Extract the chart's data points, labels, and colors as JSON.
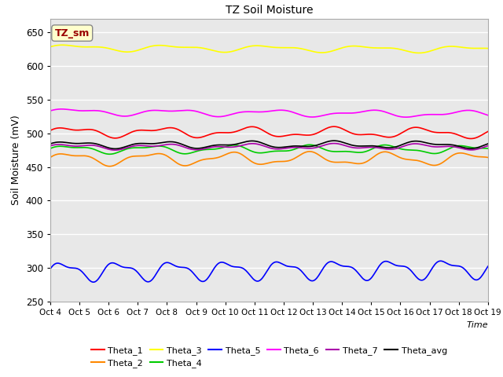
{
  "title": "TZ Soil Moisture",
  "xlabel": "Time",
  "ylabel": "Soil Moisture (mV)",
  "ylim": [
    250,
    670
  ],
  "yticks": [
    250,
    300,
    350,
    400,
    450,
    500,
    550,
    600,
    650
  ],
  "x_start": 0,
  "x_end": 15,
  "n_points": 500,
  "background_color": "#e8e8e8",
  "label_box_text": "TZ_sm",
  "label_box_facecolor": "#ffffcc",
  "label_box_edgecolor": "#aaaaaa",
  "label_box_textcolor": "#990000",
  "series": [
    {
      "name": "Theta_1",
      "color": "#ff0000",
      "base": 502,
      "amp": 6,
      "freq": 5.0,
      "freq2": 11.0,
      "amp2": 3,
      "trend": -0.1
    },
    {
      "name": "Theta_2",
      "color": "#ff8800",
      "base": 462,
      "amp": 8,
      "freq": 5.5,
      "freq2": 12.0,
      "amp2": 3,
      "trend": 0.0
    },
    {
      "name": "Theta_3",
      "color": "#ffff00",
      "base": 627,
      "amp": 4,
      "freq": 4.5,
      "freq2": 9.0,
      "amp2": 2,
      "trend": -0.15
    },
    {
      "name": "Theta_4",
      "color": "#00cc00",
      "base": 476,
      "amp": 5,
      "freq": 5.5,
      "freq2": 12.0,
      "amp2": 2,
      "trend": 0.0
    },
    {
      "name": "Theta_5",
      "color": "#0000ff",
      "base": 295,
      "amp": 12,
      "freq": 8.0,
      "freq2": 16.0,
      "amp2": 5,
      "trend": 0.25
    },
    {
      "name": "Theta_6",
      "color": "#ff00ff",
      "base": 532,
      "amp": 4,
      "freq": 4.5,
      "freq2": 9.5,
      "amp2": 2,
      "trend": -0.25
    },
    {
      "name": "Theta_7",
      "color": "#aa00aa",
      "base": 480,
      "amp": 3,
      "freq": 5.0,
      "freq2": 11.0,
      "amp2": 2,
      "trend": 0.0
    },
    {
      "name": "Theta_avg",
      "color": "#000000",
      "base": 483,
      "amp": 4,
      "freq": 5.0,
      "freq2": 11.0,
      "amp2": 2,
      "trend": 0.0
    }
  ],
  "xtick_labels": [
    "Oct 4",
    "Oct 5",
    "Oct 6",
    "Oct 7",
    "Oct 8",
    "Oct 9",
    "Oct 10",
    "Oct 11",
    "Oct 12",
    "Oct 13",
    "Oct 14",
    "Oct 15",
    "Oct 16",
    "Oct 17",
    "Oct 18",
    "Oct 19"
  ],
  "xtick_positions": [
    0,
    1,
    2,
    3,
    4,
    5,
    6,
    7,
    8,
    9,
    10,
    11,
    12,
    13,
    14,
    15
  ]
}
